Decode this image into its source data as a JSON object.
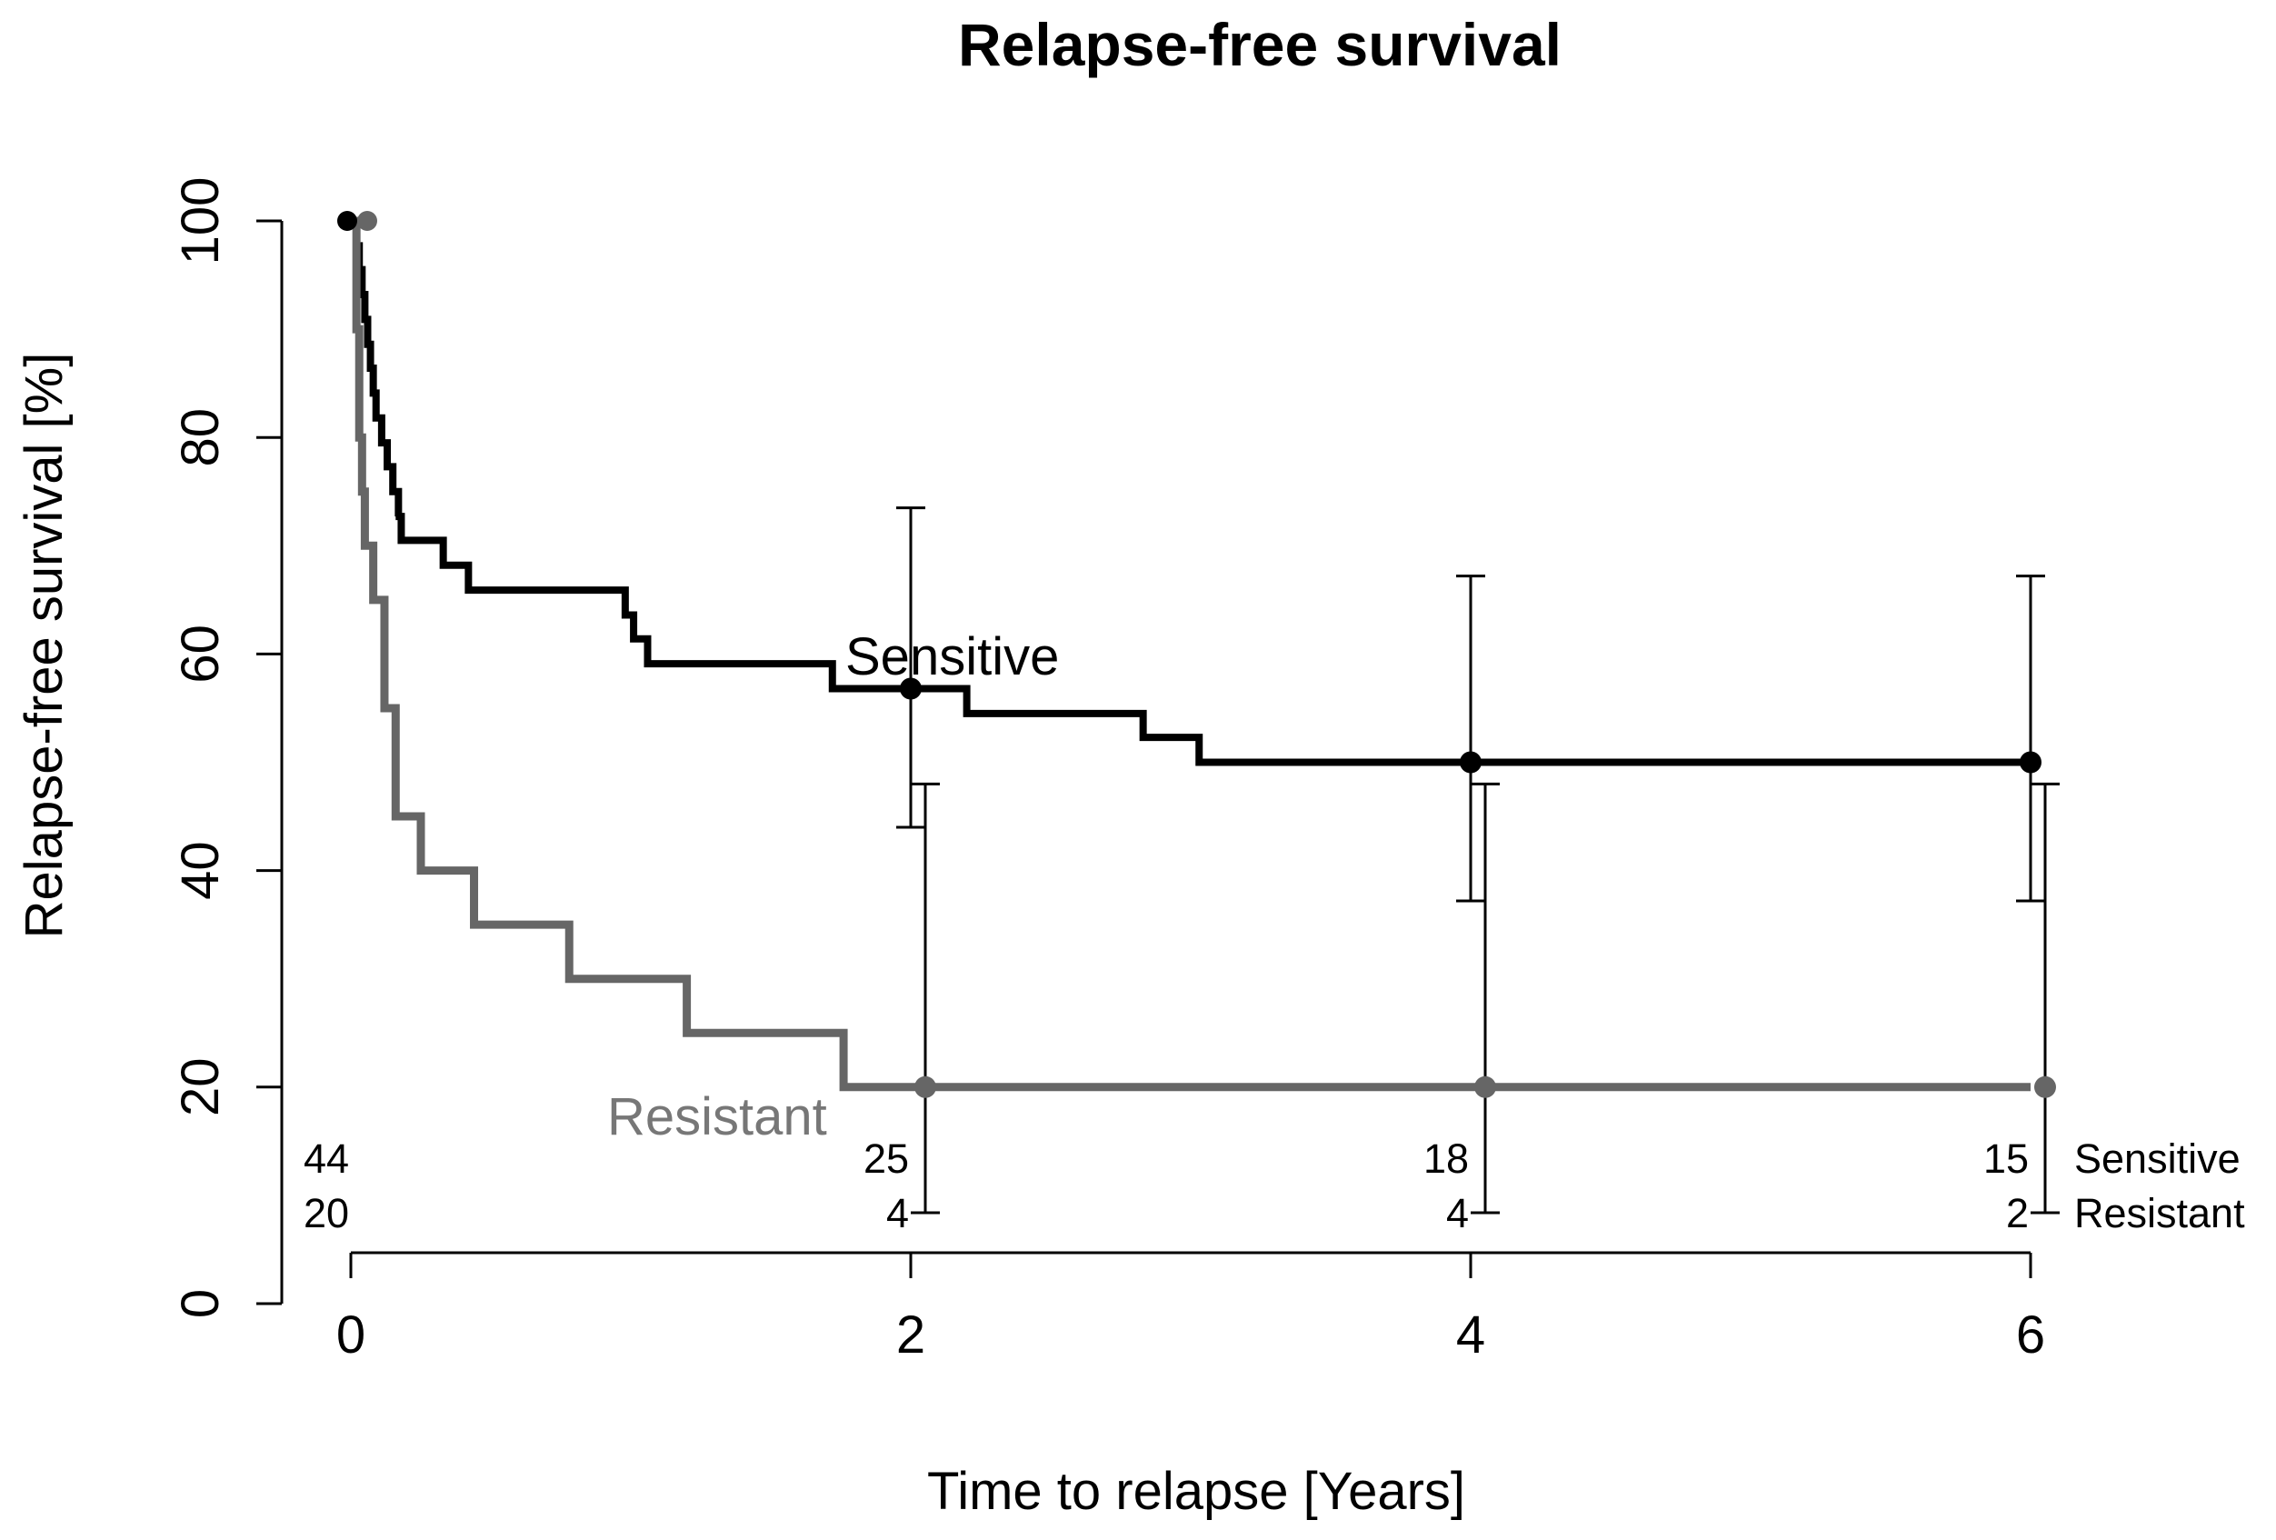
{
  "chart_data": {
    "type": "line",
    "subtype": "kaplan-meier",
    "title": "Relapse-free survival",
    "xlabel": "Time to relapse [Years]",
    "ylabel": "Relapse-free survival [%]",
    "xlim": [
      0,
      6
    ],
    "ylim": [
      0,
      100
    ],
    "x_ticks": [
      0,
      2,
      4,
      6
    ],
    "y_ticks": [
      0,
      20,
      40,
      60,
      80,
      100
    ],
    "x_tick_labels": [
      "0",
      "2",
      "4",
      "6"
    ],
    "y_tick_labels": [
      "0",
      "20",
      "40",
      "60",
      "80",
      "100"
    ],
    "grid": false,
    "series": [
      {
        "name": "Sensitive",
        "label": "Sensitive",
        "color": "#000000",
        "steps": [
          [
            0,
            100
          ],
          [
            0.02,
            97.7
          ],
          [
            0.03,
            95.5
          ],
          [
            0.04,
            93.2
          ],
          [
            0.05,
            90.9
          ],
          [
            0.06,
            88.6
          ],
          [
            0.07,
            86.4
          ],
          [
            0.08,
            84.1
          ],
          [
            0.09,
            81.8
          ],
          [
            0.11,
            79.5
          ],
          [
            0.13,
            77.3
          ],
          [
            0.15,
            75.0
          ],
          [
            0.17,
            72.7
          ],
          [
            0.16,
            72.7
          ],
          [
            0.17,
            72.7
          ],
          [
            0.18,
            70.5
          ],
          [
            0.33,
            68.2
          ],
          [
            0.42,
            65.9
          ],
          [
            0.98,
            63.6
          ],
          [
            1.01,
            61.4
          ],
          [
            1.06,
            59.1
          ],
          [
            1.72,
            56.8
          ],
          [
            2.2,
            54.5
          ],
          [
            2.83,
            52.3
          ],
          [
            3.03,
            50.0
          ],
          [
            6.0,
            50.0
          ]
        ],
        "points": [
          {
            "t": 2,
            "s": 56.8,
            "ci": [
              44.0,
              73.5
            ]
          },
          {
            "t": 4,
            "s": 50.0,
            "ci": [
              37.2,
              67.2
            ]
          },
          {
            "t": 6,
            "s": 50.0,
            "ci": [
              37.2,
              67.2
            ]
          }
        ],
        "at_risk": [
          "44",
          "25",
          "18",
          "15"
        ]
      },
      {
        "name": "Resistant",
        "label": "Resistant",
        "color": "#666666",
        "steps": [
          [
            0,
            100
          ],
          [
            0.02,
            90.0
          ],
          [
            0.03,
            80.0
          ],
          [
            0.04,
            75.0
          ],
          [
            0.05,
            70.0
          ],
          [
            0.08,
            65.0
          ],
          [
            0.12,
            55.0
          ],
          [
            0.16,
            45.0
          ],
          [
            0.25,
            40.0
          ],
          [
            0.44,
            35.0
          ],
          [
            0.78,
            30.0
          ],
          [
            1.2,
            25.0
          ],
          [
            1.76,
            20.0
          ],
          [
            6.0,
            20.0
          ]
        ],
        "points": [
          {
            "t": 2,
            "s": 20.0,
            "ci": [
              8.4,
              48.0
            ]
          },
          {
            "t": 4,
            "s": 20.0,
            "ci": [
              8.4,
              48.0
            ]
          },
          {
            "t": 6,
            "s": 20.0,
            "ci": [
              8.4,
              48.0
            ]
          }
        ],
        "at_risk": [
          "20",
          "4",
          "4",
          "2"
        ]
      }
    ],
    "risk_table": {
      "times": [
        0,
        2,
        4,
        6
      ],
      "rows": [
        {
          "name": "Sensitive",
          "values": [
            "44",
            "25",
            "18",
            "15"
          ]
        },
        {
          "name": "Resistant",
          "values": [
            "20",
            "4",
            "4",
            "2"
          ]
        }
      ]
    }
  }
}
